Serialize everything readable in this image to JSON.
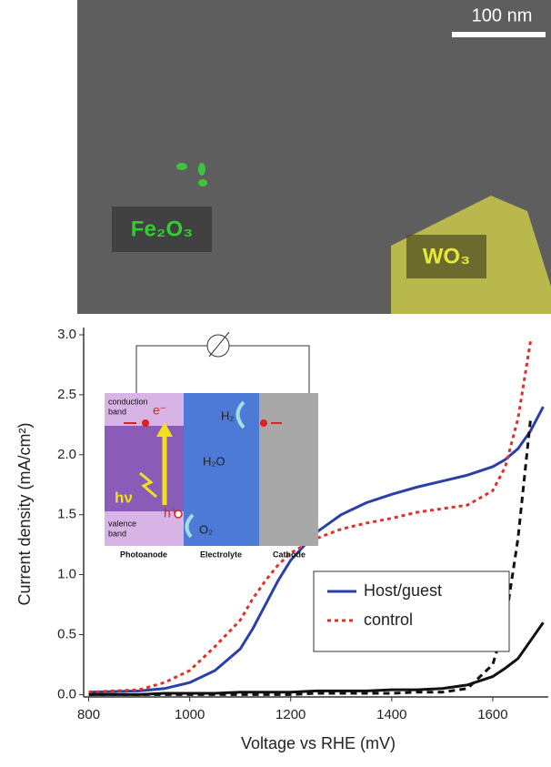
{
  "image": {
    "scale_bar": "100 nm",
    "label_a": "Fe₂O₃",
    "label_b": "WO₃"
  },
  "inset": {
    "conduction": "conduction",
    "conduction_2": "band",
    "valence": "valence",
    "valence_2": "band",
    "electron": "e⁻",
    "hole": "h⁺",
    "photon": "hν",
    "h2": "H₂",
    "h2o": "H₂O",
    "o2": "O₂",
    "photoanode": "Photoanode",
    "electrolyte": "Electrolyte",
    "cathode": "Cathode"
  },
  "chart_data": {
    "type": "line",
    "x_label": "Voltage vs RHE (mV)",
    "y_label": "Current density  (mA/cm²)",
    "x": [
      800,
      900,
      950,
      1000,
      1050,
      1100,
      1125,
      1150,
      1175,
      1200,
      1250,
      1300,
      1350,
      1400,
      1450,
      1500,
      1550,
      1600,
      1625,
      1650,
      1675,
      1700
    ],
    "series": [
      {
        "name": "Host/guest",
        "color": "#2b3fa8",
        "style": "solid",
        "values": [
          0.02,
          0.03,
          0.05,
          0.1,
          0.2,
          0.38,
          0.55,
          0.75,
          0.95,
          1.12,
          1.35,
          1.5,
          1.6,
          1.67,
          1.73,
          1.78,
          1.83,
          1.9,
          1.96,
          2.05,
          2.2,
          2.4
        ]
      },
      {
        "name": "control",
        "color": "#e0302a",
        "style": "dotted",
        "values": [
          0.02,
          0.04,
          0.1,
          0.2,
          0.4,
          0.62,
          0.8,
          0.95,
          1.08,
          1.18,
          1.3,
          1.38,
          1.43,
          1.47,
          1.52,
          1.55,
          1.58,
          1.7,
          1.9,
          2.3,
          2.95,
          null
        ]
      },
      {
        "color": "#111111",
        "style": "solid",
        "values": [
          0.0,
          0.0,
          0.01,
          0.01,
          0.01,
          0.02,
          0.02,
          0.02,
          0.02,
          0.02,
          0.03,
          0.03,
          0.03,
          0.04,
          0.04,
          0.05,
          0.08,
          0.15,
          0.22,
          0.3,
          0.45,
          0.6
        ]
      },
      {
        "color": "#111111",
        "style": "dashed",
        "values": [
          0.0,
          0.0,
          0.0,
          0.0,
          0.0,
          0.0,
          0.0,
          0.0,
          0.0,
          0.0,
          0.01,
          0.01,
          0.01,
          0.01,
          0.02,
          0.02,
          0.05,
          0.25,
          0.6,
          1.3,
          2.3,
          null
        ]
      }
    ],
    "xlim": [
      790,
      1710
    ],
    "ylim": [
      -0.02,
      3.0
    ],
    "xticks": [
      800,
      1000,
      1200,
      1400,
      1600
    ],
    "yticks": [
      {
        "value": 0,
        "label": "0.0"
      },
      0.5,
      {
        "value": 1,
        "label": "1.0"
      },
      1.5,
      {
        "value": 2,
        "label": "2.0"
      },
      2.5,
      {
        "value": 3,
        "label": "3.0"
      }
    ]
  }
}
